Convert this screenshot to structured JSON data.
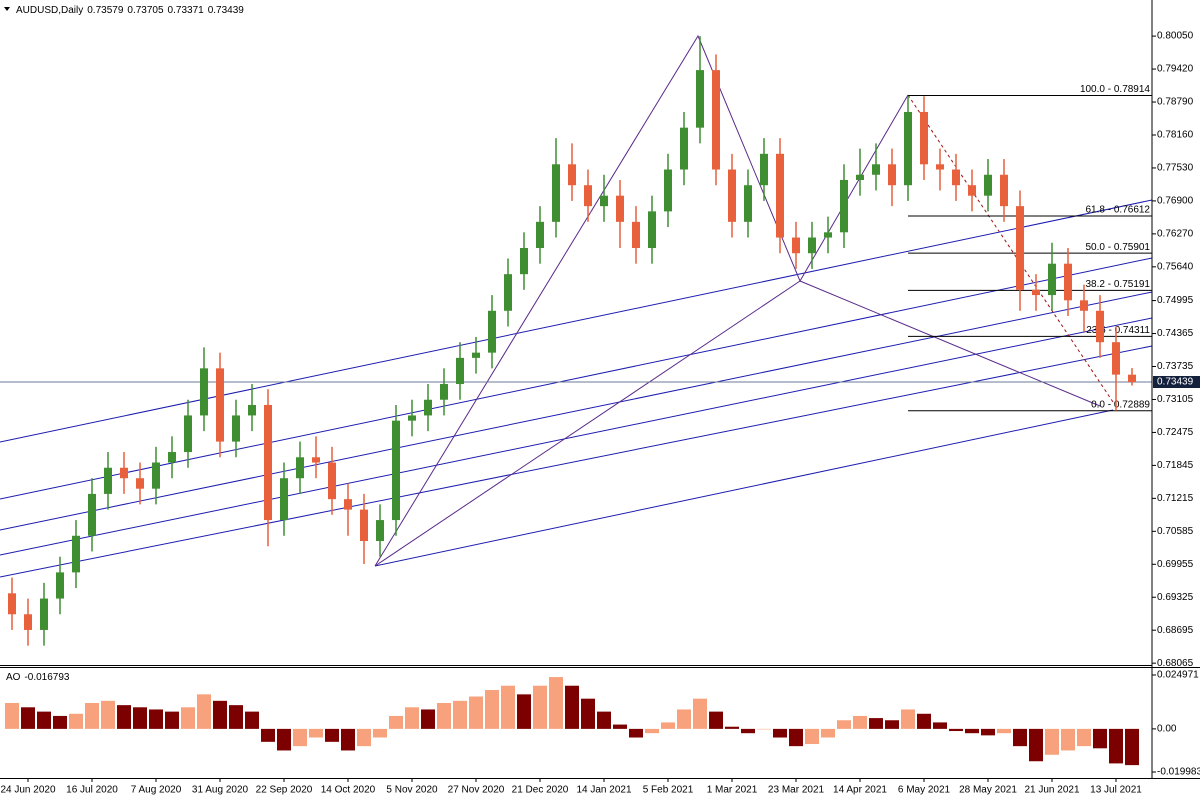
{
  "chart_data": [
    {
      "type": "candlestick",
      "title": "AUDUSD,Daily",
      "categories": [
        null,
        "24 Jun 2020",
        null,
        null,
        null,
        "16 Jul 2020",
        null,
        null,
        null,
        "7 Aug 2020",
        null,
        null,
        null,
        "31 Aug 2020",
        null,
        null,
        null,
        "22 Sep 2020",
        null,
        null,
        null,
        "14 Oct 2020",
        null,
        null,
        null,
        "5 Nov 2020",
        null,
        null,
        null,
        "27 Nov 2020",
        null,
        null,
        null,
        "21 Dec 2020",
        null,
        null,
        null,
        "14 Jan 2021",
        null,
        null,
        null,
        "5 Feb 2021",
        null,
        null,
        null,
        "1 Mar 2021",
        null,
        null,
        null,
        "23 Mar 2021",
        null,
        null,
        null,
        "14 Apr 2021",
        null,
        null,
        null,
        "6 May 2021",
        null,
        null,
        null,
        "28 May 2021",
        null,
        null,
        null,
        "21 Jun 2021",
        null,
        null,
        null,
        "13 Jul 2021",
        null
      ],
      "open": [
        0.694,
        0.69,
        0.687,
        0.693,
        0.698,
        0.705,
        0.713,
        0.718,
        0.716,
        0.714,
        0.719,
        0.721,
        0.728,
        0.737,
        0.723,
        0.728,
        0.73,
        0.708,
        0.716,
        0.72,
        0.719,
        0.712,
        0.71,
        0.704,
        0.708,
        0.727,
        0.728,
        0.731,
        0.734,
        0.739,
        0.74,
        0.748,
        0.755,
        0.76,
        0.765,
        0.776,
        0.772,
        0.768,
        0.77,
        0.765,
        0.76,
        0.767,
        0.775,
        0.783,
        0.794,
        0.775,
        0.765,
        0.772,
        0.778,
        0.762,
        0.759,
        0.762,
        0.763,
        0.773,
        0.774,
        0.776,
        0.772,
        0.786,
        0.776,
        0.775,
        0.772,
        0.77,
        0.774,
        0.768,
        0.752,
        0.751,
        0.757,
        0.75,
        0.748,
        0.742,
        0.73579
      ],
      "high": [
        0.697,
        0.693,
        0.696,
        0.701,
        0.708,
        0.716,
        0.721,
        0.721,
        0.719,
        0.722,
        0.724,
        0.731,
        0.741,
        0.74,
        0.731,
        0.734,
        0.733,
        0.719,
        0.723,
        0.724,
        0.722,
        0.715,
        0.713,
        0.711,
        0.73,
        0.731,
        0.734,
        0.737,
        0.742,
        0.743,
        0.751,
        0.758,
        0.763,
        0.768,
        0.781,
        0.78,
        0.775,
        0.774,
        0.773,
        0.768,
        0.77,
        0.778,
        0.786,
        0.8005,
        0.797,
        0.778,
        0.775,
        0.781,
        0.781,
        0.765,
        0.765,
        0.766,
        0.776,
        0.779,
        0.78,
        0.779,
        0.7891,
        0.789,
        0.779,
        0.778,
        0.775,
        0.777,
        0.777,
        0.771,
        0.755,
        0.761,
        0.76,
        0.753,
        0.751,
        0.745,
        0.73705
      ],
      "low": [
        0.687,
        0.684,
        0.684,
        0.69,
        0.695,
        0.702,
        0.71,
        0.713,
        0.711,
        0.711,
        0.716,
        0.718,
        0.725,
        0.72,
        0.72,
        0.725,
        0.703,
        0.705,
        0.713,
        0.716,
        0.709,
        0.705,
        0.6996,
        0.701,
        0.705,
        0.724,
        0.725,
        0.728,
        0.731,
        0.736,
        0.737,
        0.745,
        0.752,
        0.757,
        0.762,
        0.769,
        0.765,
        0.765,
        0.76,
        0.757,
        0.757,
        0.764,
        0.772,
        0.78,
        0.772,
        0.762,
        0.762,
        0.769,
        0.759,
        0.756,
        0.756,
        0.759,
        0.76,
        0.77,
        0.771,
        0.768,
        0.769,
        0.773,
        0.771,
        0.769,
        0.767,
        0.767,
        0.765,
        0.748,
        0.748,
        0.748,
        0.747,
        0.744,
        0.739,
        0.7289,
        0.73371
      ],
      "close": [
        0.69,
        0.687,
        0.693,
        0.698,
        0.705,
        0.713,
        0.718,
        0.716,
        0.714,
        0.719,
        0.721,
        0.728,
        0.737,
        0.723,
        0.728,
        0.73,
        0.708,
        0.716,
        0.72,
        0.719,
        0.712,
        0.71,
        0.704,
        0.708,
        0.727,
        0.728,
        0.731,
        0.734,
        0.739,
        0.74,
        0.748,
        0.755,
        0.76,
        0.765,
        0.776,
        0.772,
        0.768,
        0.77,
        0.765,
        0.76,
        0.767,
        0.775,
        0.783,
        0.794,
        0.775,
        0.765,
        0.772,
        0.778,
        0.762,
        0.759,
        0.762,
        0.763,
        0.773,
        0.774,
        0.776,
        0.772,
        0.786,
        0.776,
        0.775,
        0.772,
        0.77,
        0.774,
        0.768,
        0.752,
        0.751,
        0.757,
        0.75,
        0.748,
        0.742,
        0.7358,
        0.73439
      ],
      "up_color": "#3f8f32",
      "down_color": "#e8603c",
      "ylim": [
        0.6803,
        0.8074
      ],
      "yticks": [
        {
          "value": 0.8005,
          "label": "0.80050"
        },
        {
          "value": 0.7942,
          "label": "0.79420"
        },
        {
          "value": 0.7879,
          "label": "0.78790"
        },
        {
          "value": 0.7816,
          "label": "0.78160"
        },
        {
          "value": 0.7753,
          "label": "0.77530"
        },
        {
          "value": 0.769,
          "label": "0.76900"
        },
        {
          "value": 0.7627,
          "label": "0.76270"
        },
        {
          "value": 0.7564,
          "label": "0.75640"
        },
        0.74995,
        0.74365,
        0.73735,
        0.73105,
        0.72475,
        0.71845,
        0.71215,
        0.70585,
        0.69955,
        0.69325,
        0.68695,
        0.68065
      ],
      "fib": [
        {
          "label": "100.0 - 0.78914",
          "value": 0.78914
        },
        {
          "label": "61.8 - 0.76612",
          "value": 0.76612
        },
        {
          "label": "50.0 - 0.75901",
          "value": 0.75901
        },
        {
          "label": "38.2 - 0.75191",
          "value": 0.75191
        },
        {
          "label": "23.6 - 0.74311",
          "value": 0.74311
        },
        {
          "label": "0.0 - 0.72889",
          "value": 0.72889
        }
      ]
    },
    {
      "type": "bar",
      "title": "AO",
      "values": [
        0.012,
        0.01,
        0.008,
        0.006,
        0.007,
        0.012,
        0.013,
        0.011,
        0.01,
        0.009,
        0.008,
        0.01,
        0.016,
        0.013,
        0.011,
        0.008,
        -0.006,
        -0.01,
        -0.008,
        -0.004,
        -0.006,
        -0.01,
        -0.008,
        -0.004,
        0.006,
        0.01,
        0.009,
        0.012,
        0.013,
        0.015,
        0.018,
        0.02,
        0.016,
        0.02,
        0.024,
        0.02,
        0.014,
        0.008,
        0.002,
        -0.004,
        -0.002,
        0.003,
        0.009,
        0.014,
        0.008,
        0.001,
        -0.002,
        0.0,
        -0.004,
        -0.008,
        -0.007,
        -0.004,
        0.004,
        0.006,
        0.005,
        0.004,
        0.009,
        0.007,
        0.003,
        -0.001,
        -0.002,
        -0.003,
        -0.002,
        -0.008,
        -0.015,
        -0.012,
        -0.01,
        -0.008,
        -0.009,
        -0.016,
        -0.016793
      ],
      "up_color": "#f7a27c",
      "down_color": "#7d0000",
      "ylim": [
        -0.02276,
        0.02821
      ],
      "yticks": [
        0.024971,
        {
          "value": 0,
          "label": "0.00"
        },
        -0.019983
      ]
    }
  ]
}
